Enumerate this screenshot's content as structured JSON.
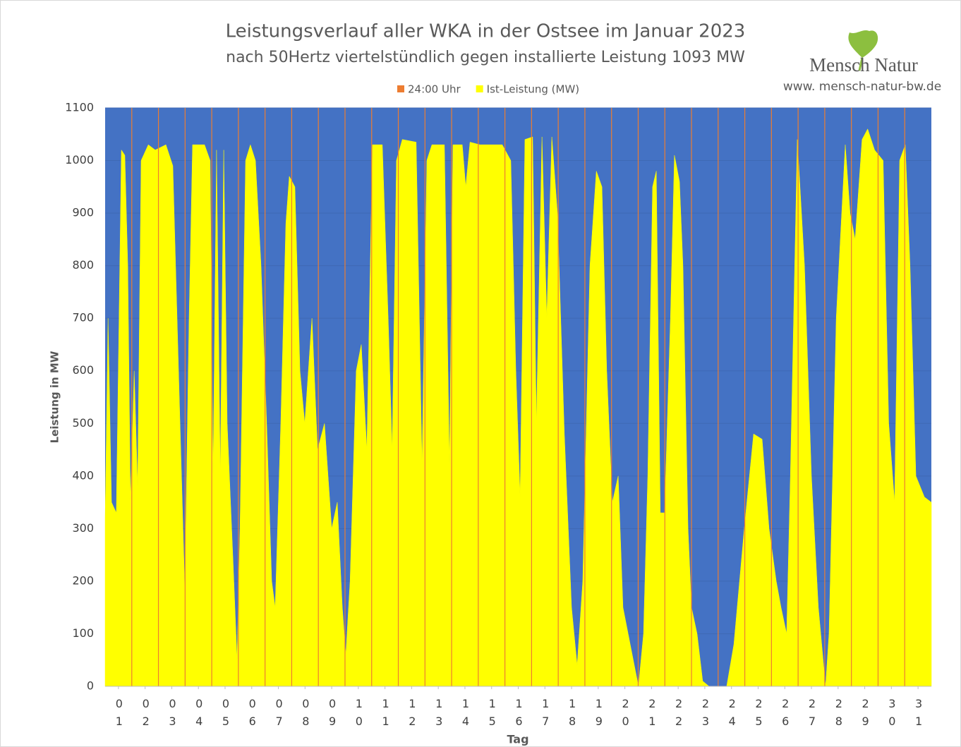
{
  "chart_data": {
    "type": "area",
    "title": "Leistungsverlauf aller WKA in der Ostsee im Januar 2023",
    "subtitle": "nach 50Hertz viertelstündlich gegen installierte Leistung 1093 MW",
    "logo_text": "Mensch Natur",
    "url": "www. mensch-natur-bw.de",
    "ylabel": "Leistung in MW",
    "xlabel": "Tag",
    "background_color": "#4472c4",
    "grid": true,
    "legend": "top",
    "xlim": [
      0,
      31
    ],
    "ylim": [
      0,
      1100
    ],
    "yticks": [
      0,
      100,
      200,
      300,
      400,
      500,
      600,
      700,
      800,
      900,
      1000,
      1100
    ],
    "xticks": [
      {
        "value": 0.5,
        "label": "01"
      },
      {
        "value": 1.5,
        "label": "02"
      },
      {
        "value": 2.5,
        "label": "03"
      },
      {
        "value": 3.5,
        "label": "04"
      },
      {
        "value": 4.5,
        "label": "05"
      },
      {
        "value": 5.5,
        "label": "06"
      },
      {
        "value": 6.5,
        "label": "07"
      },
      {
        "value": 7.5,
        "label": "08"
      },
      {
        "value": 8.5,
        "label": "09"
      },
      {
        "value": 9.5,
        "label": "10"
      },
      {
        "value": 10.5,
        "label": "11"
      },
      {
        "value": 11.5,
        "label": "12"
      },
      {
        "value": 12.5,
        "label": "13"
      },
      {
        "value": 13.5,
        "label": "14"
      },
      {
        "value": 14.5,
        "label": "15"
      },
      {
        "value": 15.5,
        "label": "16"
      },
      {
        "value": 16.5,
        "label": "17"
      },
      {
        "value": 17.5,
        "label": "18"
      },
      {
        "value": 18.5,
        "label": "19"
      },
      {
        "value": 19.5,
        "label": "20"
      },
      {
        "value": 20.5,
        "label": "21"
      },
      {
        "value": 21.5,
        "label": "22"
      },
      {
        "value": 22.5,
        "label": "23"
      },
      {
        "value": 23.5,
        "label": "24"
      },
      {
        "value": 24.5,
        "label": "25"
      },
      {
        "value": 25.5,
        "label": "26"
      },
      {
        "value": 26.5,
        "label": "27"
      },
      {
        "value": 27.5,
        "label": "28"
      },
      {
        "value": 28.5,
        "label": "29"
      },
      {
        "value": 29.5,
        "label": "30"
      },
      {
        "value": 30.5,
        "label": "31"
      }
    ],
    "series": [
      {
        "name": "24:00 Uhr",
        "color": "#ed7d31",
        "x": [
          1,
          2,
          3,
          4,
          5,
          6,
          7,
          8,
          9,
          10,
          11,
          12,
          13,
          14,
          15,
          16,
          17,
          18,
          19,
          20,
          21,
          22,
          23,
          24,
          25,
          26,
          27,
          28,
          29,
          30
        ],
        "values": [
          1100,
          1100,
          1100,
          1100,
          1100,
          1100,
          1100,
          1100,
          1100,
          1100,
          1100,
          1100,
          1100,
          1100,
          1100,
          1100,
          1100,
          1100,
          1100,
          1100,
          1100,
          1100,
          1100,
          1100,
          1100,
          1100,
          1100,
          1100,
          1100,
          1100
        ]
      },
      {
        "name": "Ist-Leistung (MW)",
        "color": "#ffff00",
        "x": [
          0,
          0.11,
          0.24,
          0.42,
          0.61,
          0.74,
          0.85,
          0.95,
          1.09,
          1.22,
          1.35,
          1.62,
          1.88,
          2.28,
          2.54,
          2.81,
          2.99,
          3.15,
          3.28,
          3.73,
          3.94,
          4.05,
          4.18,
          4.32,
          4.45,
          4.58,
          4.79,
          4.95,
          5.06,
          5.27,
          5.45,
          5.64,
          5.85,
          6.06,
          6.25,
          6.38,
          6.59,
          6.78,
          6.91,
          7.12,
          7.31,
          7.49,
          7.76,
          7.97,
          8.23,
          8.5,
          8.71,
          8.9,
          9.03,
          9.19,
          9.42,
          9.61,
          9.82,
          10.03,
          10.4,
          10.62,
          10.77,
          10.93,
          11.15,
          11.67,
          11.89,
          12.07,
          12.26,
          12.73,
          12.92,
          13.05,
          13.4,
          13.53,
          13.69,
          14.06,
          14.59,
          14.9,
          15.22,
          15.41,
          15.57,
          15.75,
          16.04,
          16.18,
          16.39,
          16.57,
          16.76,
          16.97,
          17.23,
          17.5,
          17.71,
          17.92,
          18.19,
          18.43,
          18.64,
          18.82,
          19.03,
          19.25,
          19.43,
          19.7,
          20.01,
          20.2,
          20.36,
          20.54,
          20.68,
          20.83,
          20.99,
          21.21,
          21.36,
          21.55,
          21.68,
          21.87,
          22,
          22.21,
          22.42,
          22.66,
          23.32,
          23.59,
          23.98,
          24.33,
          24.65,
          24.91,
          25.18,
          25.36,
          25.57,
          25.71,
          25.97,
          26.24,
          26.5,
          26.76,
          27.03,
          27.16,
          27.43,
          27.77,
          27.95,
          28.14,
          28.4,
          28.61,
          28.87,
          29.19,
          29.4,
          29.62,
          29.81,
          30.02,
          30.2,
          30.42,
          30.74,
          31
        ],
        "values": [
          320,
          700,
          350,
          330,
          1020,
          1010,
          800,
          350,
          600,
          380,
          1000,
          1030,
          1020,
          1030,
          990,
          500,
          180,
          700,
          1030,
          1030,
          1000,
          400,
          1020,
          400,
          1020,
          500,
          250,
          50,
          300,
          1000,
          1030,
          1000,
          800,
          500,
          200,
          150,
          500,
          880,
          970,
          950,
          600,
          500,
          700,
          450,
          500,
          300,
          350,
          150,
          60,
          200,
          600,
          650,
          450,
          1030,
          1030,
          700,
          450,
          1000,
          1040,
          1035,
          420,
          1000,
          1030,
          1030,
          420,
          1030,
          1030,
          950,
          1035,
          1030,
          1030,
          1030,
          1000,
          600,
          360,
          1040,
          1045,
          500,
          1045,
          700,
          1045,
          900,
          480,
          150,
          40,
          200,
          800,
          980,
          950,
          600,
          350,
          400,
          150,
          80,
          0,
          100,
          400,
          950,
          980,
          330,
          330,
          700,
          1010,
          960,
          800,
          300,
          150,
          100,
          10,
          0,
          0,
          80,
          300,
          480,
          470,
          300,
          200,
          150,
          100,
          400,
          1040,
          800,
          400,
          150,
          0,
          100,
          700,
          1030,
          900,
          850,
          1040,
          1060,
          1020,
          1000,
          500,
          350,
          1000,
          1030,
          800,
          400,
          360,
          350
        ]
      }
    ]
  }
}
